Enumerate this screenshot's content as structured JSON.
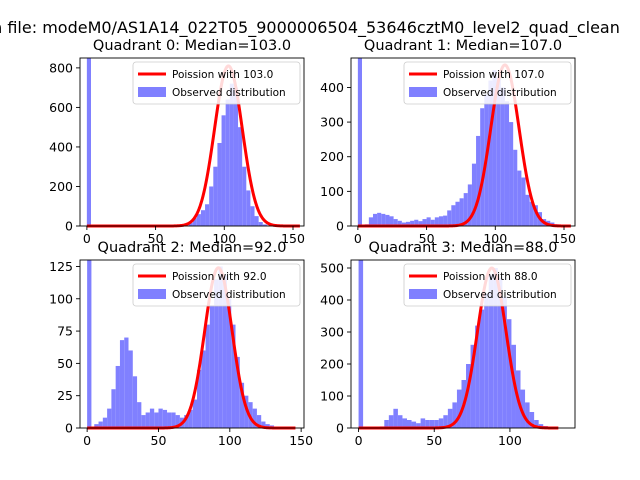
{
  "suptitle": "n file: modeM0/AS1A14_022T05_9000006504_53646cztM0_level2_quad_clean",
  "colors": {
    "fit": "#ff0000",
    "hist": "#8080ff",
    "axis": "#000000",
    "bg": "#ffffff"
  },
  "chart_data": [
    {
      "type": "bar",
      "title": "Quadrant 0: Median=103.0",
      "xlim": [
        -5,
        158
      ],
      "ylim": [
        0,
        850
      ],
      "xticks": [
        0,
        50,
        100,
        150
      ],
      "yticks": [
        0,
        200,
        400,
        600,
        800
      ],
      "bin_width": 3,
      "legend": {
        "placement": "top-right",
        "fit_label": "Poission with 103.0",
        "hist_label": "Observed distribution"
      },
      "median": 103.0,
      "fit_peak": 810,
      "fit_sigma": 10.1,
      "fit_range": [
        0,
        155
      ],
      "histogram": {
        "x": [
          0,
          74,
          77,
          80,
          83,
          86,
          89,
          92,
          95,
          98,
          101,
          104,
          107,
          110,
          113,
          116,
          119,
          122,
          125,
          128,
          131
        ],
        "counts": [
          850,
          15,
          40,
          60,
          80,
          110,
          200,
          300,
          420,
          560,
          640,
          720,
          700,
          500,
          300,
          180,
          100,
          50,
          20,
          8,
          3
        ]
      }
    },
    {
      "type": "bar",
      "title": "Quadrant 1: Median=107.0",
      "xlim": [
        -5,
        158
      ],
      "ylim": [
        0,
        485
      ],
      "xticks": [
        0,
        50,
        100,
        150
      ],
      "yticks": [
        0,
        100,
        200,
        300,
        400
      ],
      "bin_width": 3,
      "legend": {
        "placement": "top-right",
        "fit_label": "Poission with 107.0",
        "hist_label": "Observed distribution"
      },
      "median": 107.0,
      "fit_peak": 465,
      "fit_sigma": 10.3,
      "fit_range": [
        0,
        155
      ],
      "histogram": {
        "x": [
          0,
          5,
          8,
          11,
          14,
          17,
          20,
          23,
          26,
          29,
          32,
          35,
          38,
          41,
          44,
          47,
          50,
          53,
          56,
          59,
          62,
          65,
          68,
          71,
          74,
          77,
          80,
          83,
          86,
          89,
          92,
          95,
          98,
          101,
          104,
          107,
          110,
          113,
          116,
          119,
          122,
          125,
          128,
          131,
          134,
          137,
          140,
          143,
          146,
          149
        ],
        "counts": [
          485,
          5,
          25,
          35,
          38,
          35,
          32,
          28,
          20,
          15,
          10,
          12,
          15,
          18,
          14,
          20,
          25,
          18,
          25,
          28,
          30,
          45,
          60,
          70,
          80,
          95,
          120,
          180,
          260,
          340,
          380,
          420,
          450,
          430,
          400,
          360,
          300,
          220,
          160,
          140,
          90,
          70,
          60,
          40,
          20,
          15,
          10,
          5,
          3,
          2
        ]
      }
    },
    {
      "type": "bar",
      "title": "Quadrant 2: Median=92.0",
      "xlim": [
        -5,
        152
      ],
      "ylim": [
        0,
        130
      ],
      "xticks": [
        0,
        50,
        100,
        150
      ],
      "yticks": [
        0,
        25,
        50,
        75,
        100,
        125
      ],
      "bin_width": 3,
      "legend": {
        "placement": "top-right",
        "fit_label": "Poission with 92.0",
        "hist_label": "Observed distribution"
      },
      "median": 92.0,
      "fit_peak": 124,
      "fit_sigma": 9.6,
      "fit_range": [
        0,
        146
      ],
      "histogram": {
        "x": [
          0,
          5,
          8,
          11,
          14,
          17,
          20,
          23,
          26,
          29,
          32,
          35,
          38,
          41,
          44,
          47,
          50,
          53,
          56,
          59,
          62,
          65,
          68,
          71,
          74,
          77,
          80,
          83,
          86,
          89,
          92,
          95,
          98,
          101,
          104,
          107,
          110,
          113,
          116,
          119,
          122,
          125,
          128,
          131
        ],
        "counts": [
          130,
          3,
          5,
          8,
          15,
          30,
          48,
          68,
          70,
          60,
          40,
          20,
          10,
          12,
          15,
          12,
          15,
          14,
          12,
          12,
          10,
          8,
          10,
          14,
          22,
          45,
          60,
          80,
          95,
          115,
          125,
          118,
          100,
          80,
          55,
          35,
          25,
          20,
          15,
          10,
          5,
          3,
          2,
          1
        ]
      }
    },
    {
      "type": "bar",
      "title": "Quadrant 3: Median=88.0",
      "xlim": [
        -5,
        143
      ],
      "ylim": [
        0,
        525
      ],
      "xticks": [
        0,
        50,
        100
      ],
      "yticks": [
        0,
        100,
        200,
        300,
        400,
        500
      ],
      "bin_width": 3,
      "legend": {
        "placement": "top-right",
        "fit_label": "Poission with 88.0",
        "hist_label": "Observed distribution"
      },
      "median": 88.0,
      "fit_peak": 500,
      "fit_sigma": 9.4,
      "fit_range": [
        0,
        132
      ],
      "histogram": {
        "x": [
          0,
          14,
          17,
          20,
          23,
          26,
          29,
          32,
          35,
          38,
          41,
          44,
          47,
          50,
          53,
          56,
          59,
          62,
          65,
          68,
          71,
          74,
          77,
          80,
          83,
          86,
          89,
          92,
          95,
          98,
          101,
          104,
          107,
          110,
          113,
          116,
          119,
          122,
          125,
          128
        ],
        "counts": [
          525,
          5,
          25,
          40,
          60,
          40,
          30,
          25,
          20,
          15,
          30,
          25,
          25,
          25,
          30,
          40,
          60,
          80,
          120,
          150,
          200,
          260,
          320,
          370,
          420,
          480,
          500,
          470,
          410,
          340,
          260,
          180,
          120,
          80,
          50,
          25,
          12,
          6,
          3,
          1
        ]
      }
    }
  ]
}
